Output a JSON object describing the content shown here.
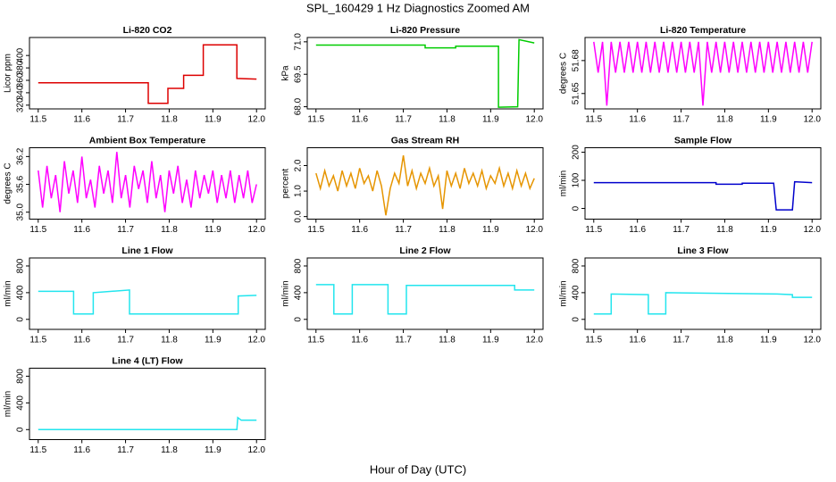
{
  "title": "SPL_160429 1 Hz Diagnostics Zoomed AM",
  "xlabel": "Hour of Day (UTC)",
  "chart_data": [
    {
      "type": "line",
      "title": "Li-820 CO2",
      "ylabel": "Licor ppm",
      "color": "#dd0000",
      "xlim": [
        11.48,
        12.02
      ],
      "xticks": [
        11.5,
        11.6,
        11.7,
        11.8,
        11.9,
        {
          "value": 12,
          "label": "12.0"
        }
      ],
      "ylim": [
        314,
        429
      ],
      "yticks": [
        320,
        340,
        360,
        380,
        400
      ],
      "x": [
        11.5,
        11.752,
        11.752,
        11.797,
        11.797,
        11.833,
        11.833,
        11.878,
        11.878,
        11.955,
        11.955,
        12.0
      ],
      "values": [
        356,
        356,
        323,
        323,
        347,
        347,
        368,
        368,
        417,
        417,
        363,
        362
      ]
    },
    {
      "type": "line",
      "title": "Li-820 Pressure",
      "ylabel": "kPa",
      "color": "#00cc00",
      "xlim": [
        11.48,
        12.02
      ],
      "xticks": [
        11.5,
        11.6,
        11.7,
        11.8,
        11.9,
        {
          "value": 12,
          "label": "12.0"
        }
      ],
      "ylim": [
        67.9,
        71.2
      ],
      "yticks": [
        {
          "value": 68,
          "label": "68.0"
        },
        69.5,
        {
          "value": 71,
          "label": "71.0"
        }
      ],
      "x": [
        11.5,
        11.75,
        11.75,
        11.82,
        11.82,
        11.918,
        11.918,
        11.962,
        11.965,
        12.0
      ],
      "values": [
        70.85,
        70.85,
        70.72,
        70.72,
        70.8,
        70.8,
        67.98,
        68.0,
        71.1,
        70.95
      ]
    },
    {
      "type": "line",
      "title": "Li-820 Temperature",
      "ylabel": "degrees C",
      "color": "#ff00ff",
      "xlim": [
        11.48,
        12.02
      ],
      "xticks": [
        11.5,
        11.6,
        11.7,
        11.8,
        11.9,
        {
          "value": 12,
          "label": "12.0"
        }
      ],
      "ylim": [
        51.636,
        51.701
      ],
      "yticks": [
        51.65,
        51.68
      ],
      "x": [
        11.5,
        11.51,
        11.52,
        11.53,
        11.54,
        11.55,
        11.56,
        11.57,
        11.58,
        11.59,
        11.6,
        11.61,
        11.62,
        11.63,
        11.64,
        11.65,
        11.66,
        11.67,
        11.68,
        11.69,
        11.7,
        11.71,
        11.72,
        11.73,
        11.74,
        11.75,
        11.76,
        11.77,
        11.78,
        11.79,
        11.8,
        11.81,
        11.82,
        11.83,
        11.84,
        11.85,
        11.86,
        11.87,
        11.88,
        11.89,
        11.9,
        11.91,
        11.92,
        11.93,
        11.94,
        11.95,
        11.96,
        11.97,
        11.98,
        11.99,
        12.0
      ],
      "values": [
        51.697,
        51.669,
        51.697,
        51.639,
        51.697,
        51.669,
        51.697,
        51.669,
        51.697,
        51.669,
        51.697,
        51.669,
        51.697,
        51.669,
        51.697,
        51.669,
        51.697,
        51.669,
        51.697,
        51.669,
        51.697,
        51.669,
        51.697,
        51.669,
        51.697,
        51.639,
        51.697,
        51.669,
        51.697,
        51.669,
        51.697,
        51.669,
        51.697,
        51.669,
        51.697,
        51.669,
        51.697,
        51.669,
        51.697,
        51.669,
        51.697,
        51.669,
        51.697,
        51.669,
        51.697,
        51.669,
        51.697,
        51.669,
        51.697,
        51.669,
        51.697
      ]
    },
    {
      "type": "line",
      "title": "Ambient Box Temperature",
      "ylabel": "degrees C",
      "color": "#ff00ff",
      "xlim": [
        11.48,
        12.02
      ],
      "xticks": [
        11.5,
        11.6,
        11.7,
        11.8,
        11.9,
        {
          "value": 12,
          "label": "12.0"
        }
      ],
      "ylim": [
        34.85,
        36.39
      ],
      "yticks": [
        {
          "value": 35,
          "label": "35.0"
        },
        35.6,
        36.2
      ],
      "x": [
        11.5,
        11.51,
        11.52,
        11.53,
        11.54,
        11.55,
        11.56,
        11.57,
        11.58,
        11.59,
        11.6,
        11.61,
        11.62,
        11.63,
        11.64,
        11.65,
        11.66,
        11.67,
        11.68,
        11.69,
        11.7,
        11.71,
        11.72,
        11.73,
        11.74,
        11.75,
        11.76,
        11.77,
        11.78,
        11.79,
        11.8,
        11.81,
        11.82,
        11.83,
        11.84,
        11.85,
        11.86,
        11.87,
        11.88,
        11.89,
        11.9,
        11.91,
        11.92,
        11.93,
        11.94,
        11.95,
        11.96,
        11.97,
        11.98,
        11.99,
        12.0
      ],
      "values": [
        35.9,
        35.1,
        36.0,
        35.3,
        35.8,
        35.0,
        36.1,
        35.4,
        35.9,
        35.2,
        36.2,
        35.3,
        35.7,
        35.1,
        36.0,
        35.4,
        35.9,
        35.2,
        36.3,
        35.3,
        35.8,
        35.1,
        36.0,
        35.5,
        35.9,
        35.2,
        36.1,
        35.3,
        35.8,
        35.0,
        35.9,
        35.4,
        36.0,
        35.2,
        35.7,
        35.1,
        35.9,
        35.3,
        35.8,
        35.4,
        35.9,
        35.2,
        35.8,
        35.3,
        35.9,
        35.2,
        35.8,
        35.3,
        35.9,
        35.2,
        35.6
      ]
    },
    {
      "type": "line",
      "title": "Gas Stream RH",
      "ylabel": "percent",
      "color": "#e69500",
      "xlim": [
        11.48,
        12.02
      ],
      "xticks": [
        11.5,
        11.6,
        11.7,
        11.8,
        11.9,
        {
          "value": 12,
          "label": "12.0"
        }
      ],
      "ylim": [
        -0.1,
        2.7
      ],
      "yticks": [
        {
          "value": 0,
          "label": "0.0"
        },
        {
          "value": 1,
          "label": "1.0"
        },
        {
          "value": 2,
          "label": "2.0"
        }
      ],
      "x": [
        11.5,
        11.51,
        11.52,
        11.53,
        11.54,
        11.55,
        11.56,
        11.57,
        11.58,
        11.59,
        11.6,
        11.61,
        11.62,
        11.63,
        11.64,
        11.65,
        11.66,
        11.67,
        11.68,
        11.69,
        11.7,
        11.71,
        11.72,
        11.73,
        11.74,
        11.75,
        11.76,
        11.77,
        11.78,
        11.79,
        11.8,
        11.81,
        11.82,
        11.83,
        11.84,
        11.85,
        11.86,
        11.87,
        11.88,
        11.89,
        11.9,
        11.91,
        11.92,
        11.93,
        11.94,
        11.95,
        11.96,
        11.97,
        11.98,
        11.99,
        12.0
      ],
      "values": [
        1.7,
        1.1,
        1.8,
        1.2,
        1.6,
        1.0,
        1.8,
        1.2,
        1.7,
        1.1,
        1.9,
        1.3,
        1.6,
        1.0,
        1.8,
        1.2,
        0.05,
        1.1,
        1.7,
        1.3,
        2.4,
        1.2,
        1.8,
        1.1,
        1.7,
        1.3,
        1.9,
        1.2,
        1.6,
        0.3,
        1.8,
        1.2,
        1.7,
        1.1,
        1.9,
        1.3,
        1.7,
        1.2,
        1.8,
        1.1,
        1.6,
        1.3,
        1.9,
        1.2,
        1.7,
        1.1,
        1.8,
        1.2,
        1.7,
        1.1,
        1.5
      ]
    },
    {
      "type": "line",
      "title": "Sample Flow",
      "ylabel": "ml/min",
      "color": "#0000cc",
      "xlim": [
        11.48,
        12.02
      ],
      "xticks": [
        11.5,
        11.6,
        11.7,
        11.8,
        11.9,
        {
          "value": 12,
          "label": "12.0"
        }
      ],
      "ylim": [
        -38,
        216
      ],
      "yticks": [
        0,
        100,
        200
      ],
      "x": [
        11.5,
        11.78,
        11.78,
        11.84,
        11.84,
        11.912,
        11.918,
        11.955,
        11.96,
        12.0
      ],
      "values": [
        92,
        92,
        86,
        86,
        90,
        90,
        -5,
        -5,
        95,
        92
      ]
    },
    {
      "type": "line",
      "title": "Line 1 Flow",
      "ylabel": "ml/min",
      "color": "#22e5ee",
      "xlim": [
        11.48,
        12.02
      ],
      "xticks": [
        11.5,
        11.6,
        11.7,
        11.8,
        11.9,
        {
          "value": 12,
          "label": "12.0"
        }
      ],
      "ylim": [
        -150,
        920
      ],
      "yticks": [
        0,
        400,
        800
      ],
      "x": [
        11.5,
        11.581,
        11.581,
        11.626,
        11.626,
        11.709,
        11.709,
        11.958,
        11.958,
        12.0
      ],
      "values": [
        420,
        420,
        80,
        80,
        400,
        440,
        80,
        80,
        350,
        360
      ]
    },
    {
      "type": "line",
      "title": "Line 2 Flow",
      "ylabel": "ml/min",
      "color": "#22e5ee",
      "xlim": [
        11.48,
        12.02
      ],
      "xticks": [
        11.5,
        11.6,
        11.7,
        11.8,
        11.9,
        {
          "value": 12,
          "label": "12.0"
        }
      ],
      "ylim": [
        -150,
        920
      ],
      "yticks": [
        0,
        400,
        800
      ],
      "x": [
        11.5,
        11.541,
        11.541,
        11.583,
        11.583,
        11.665,
        11.665,
        11.707,
        11.707,
        11.955,
        11.955,
        12.0
      ],
      "values": [
        520,
        520,
        80,
        80,
        520,
        520,
        80,
        80,
        510,
        510,
        440,
        440
      ]
    },
    {
      "type": "line",
      "title": "Line 3 Flow",
      "ylabel": "ml/min",
      "color": "#22e5ee",
      "xlim": [
        11.48,
        12.02
      ],
      "xticks": [
        11.5,
        11.6,
        11.7,
        11.8,
        11.9,
        {
          "value": 12,
          "label": "12.0"
        }
      ],
      "ylim": [
        -150,
        920
      ],
      "yticks": [
        0,
        400,
        800
      ],
      "x": [
        11.5,
        11.54,
        11.54,
        11.625,
        11.625,
        11.665,
        11.665,
        11.92,
        11.955,
        11.955,
        12.0
      ],
      "values": [
        80,
        80,
        380,
        370,
        80,
        80,
        400,
        380,
        370,
        330,
        330
      ]
    },
    {
      "type": "line",
      "title": "Line 4 (LT) Flow",
      "ylabel": "ml/min",
      "color": "#22e5ee",
      "xlim": [
        11.48,
        12.02
      ],
      "xticks": [
        11.5,
        11.6,
        11.7,
        11.8,
        11.9,
        {
          "value": 12,
          "label": "12.0"
        }
      ],
      "ylim": [
        -150,
        920
      ],
      "yticks": [
        0,
        400,
        800
      ],
      "x": [
        11.5,
        11.955,
        11.957,
        11.965,
        12.0
      ],
      "values": [
        0,
        0,
        180,
        140,
        140
      ]
    }
  ]
}
